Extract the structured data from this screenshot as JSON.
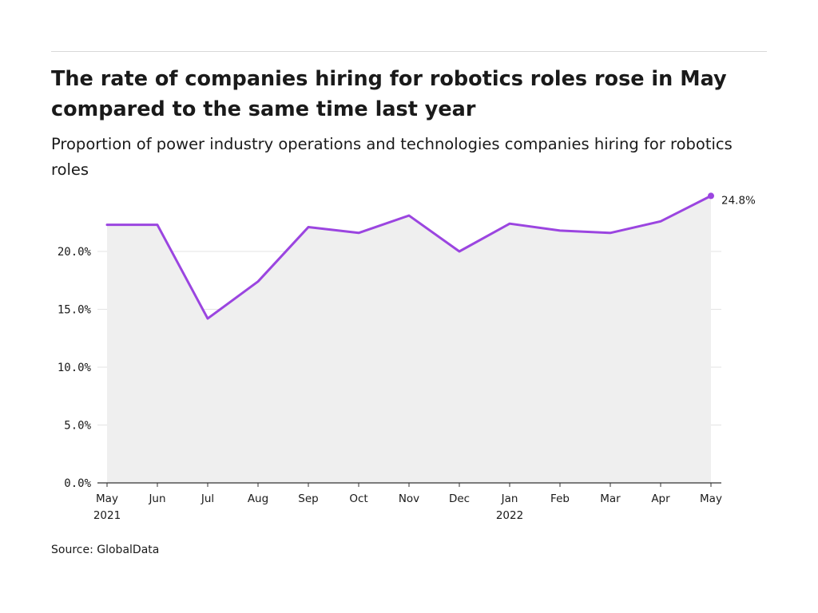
{
  "title": "The rate of companies hiring for robotics roles rose in May compared to the same time last year",
  "subtitle": "Proportion of power industry operations and technologies companies hiring for robotics roles",
  "source": "Source: GlobalData",
  "colors": {
    "line": "#9b45e0",
    "area": "#efefef",
    "grid": "#e3e3e3",
    "axis": "#333333"
  },
  "chart_data": {
    "type": "area",
    "categories": [
      "May",
      "Jun",
      "Jul",
      "Aug",
      "Sep",
      "Oct",
      "Nov",
      "Dec",
      "Jan",
      "Feb",
      "Mar",
      "Apr",
      "May"
    ],
    "year_labels": [
      "2021",
      "",
      "",
      "",
      "",
      "",
      "",
      "",
      "2022",
      "",
      "",
      "",
      ""
    ],
    "series": [
      {
        "values": [
          22.3,
          22.3,
          14.2,
          17.4,
          22.1,
          21.6,
          23.1,
          20.0,
          22.4,
          21.8,
          21.6,
          22.6,
          24.8
        ]
      }
    ],
    "yticks": [
      0,
      5,
      10,
      15,
      20
    ],
    "ytick_labels": [
      "0.0%",
      "5.0%",
      "10.0%",
      "15.0%",
      "20.0%"
    ],
    "ylim": [
      0,
      25.6
    ],
    "last_value_label": "24.8%",
    "grid": true
  }
}
